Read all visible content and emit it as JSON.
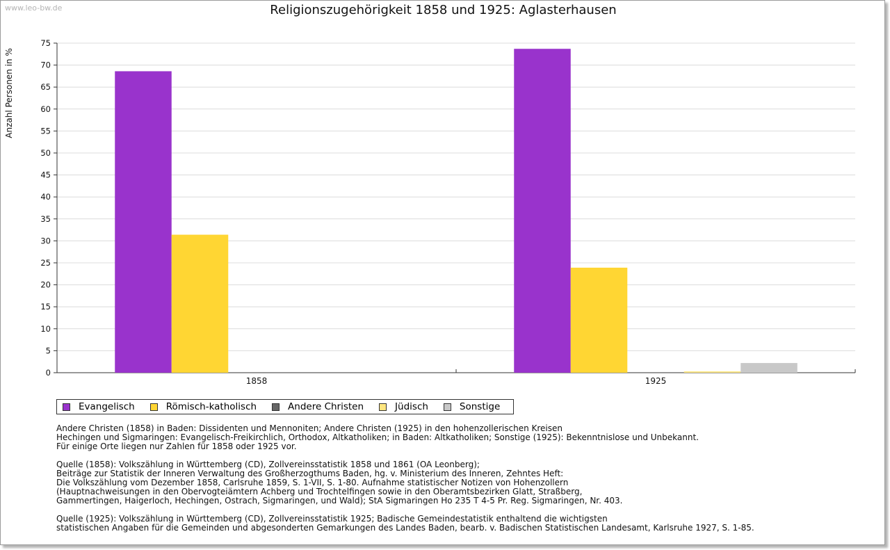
{
  "watermark": "www.leo-bw.de",
  "chart_data": {
    "type": "bar",
    "title": "Religionszugehörigkeit 1858 und 1925: Aglasterhausen",
    "xlabel": "",
    "ylabel": "Anzahl Personen in %",
    "ylim": [
      0,
      75
    ],
    "yticks": [
      "0",
      "5",
      "10",
      "15",
      "20",
      "25",
      "30",
      "35",
      "40",
      "45",
      "50",
      "55",
      "60",
      "65",
      "70",
      "75"
    ],
    "grid": true,
    "categories": [
      "1858",
      "1925"
    ],
    "series": [
      {
        "name": "Evangelisch",
        "color": "#9933cc",
        "values": [
          68.6,
          73.7
        ]
      },
      {
        "name": "Römisch-katholisch",
        "color": "#ffd633",
        "values": [
          31.4,
          23.9
        ]
      },
      {
        "name": "Andere Christen",
        "color": "#666666",
        "values": [
          0,
          0
        ]
      },
      {
        "name": "Jüdisch",
        "color": "#ffe680",
        "values": [
          0,
          0.3
        ]
      },
      {
        "name": "Sonstige",
        "color": "#c8c8c8",
        "values": [
          0,
          2.2
        ]
      }
    ],
    "legend_position": "bottom-left"
  },
  "notes": [
    "Andere Christen (1858) in Baden: Dissidenten und Mennoniten; Andere Christen (1925) in den hohenzollerischen Kreisen",
    "Hechingen und Sigmaringen: Evangelisch-Freikirchlich, Orthodox, Altkatholiken; in Baden: Altkatholiken; Sonstige (1925): Bekenntnislose und Unbekannt.",
    "Für einige Orte liegen nur Zahlen für 1858 oder 1925 vor.",
    "",
    "Quelle (1858): Volkszählung in Württemberg (CD), Zollvereinsstatistik 1858 und 1861 (OA Leonberg);",
    "Beiträge zur Statistik der Inneren Verwaltung des Großherzogthums Baden, hg. v. Ministerium des Inneren, Zehntes Heft:",
    "Die Volkszählung vom Dezember 1858, Carlsruhe 1859, S. 1-VII, S. 1-80. Aufnahme statistischer Notizen von Hohenzollern",
    "(Hauptnachweisungen in den Obervogteiämtern Achberg und Trochtelfingen sowie in den Oberamtsbezirken Glatt, Straßberg,",
    "Gammertingen, Haigerloch, Hechingen, Ostrach, Sigmaringen, und Wald); StA Sigmaringen Ho 235 T 4-5 Pr. Reg. Sigmaringen, Nr. 403.",
    "",
    "Quelle (1925): Volkszählung in Württemberg (CD), Zollvereinsstatistik 1925; Badische Gemeindestatistik enthaltend die wichtigsten",
    "statistischen Angaben für die Gemeinden und abgesonderten Gemarkungen des Landes Baden, bearb. v. Badischen Statistischen Landesamt, Karlsruhe 1927, S. 1-85."
  ]
}
